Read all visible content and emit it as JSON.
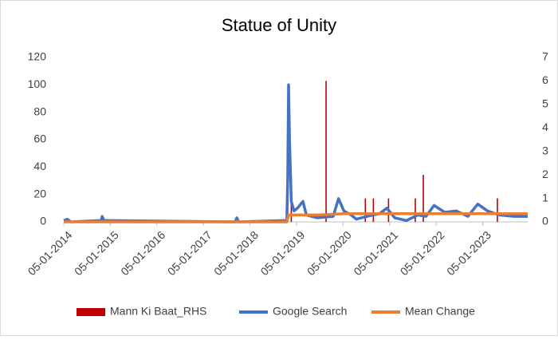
{
  "chart_data": {
    "type": "combo",
    "title": "Statue of Unity",
    "xlim": [
      "2014-01-05",
      "2023-12-24"
    ],
    "xticks": [
      {
        "value": "2014-01-05",
        "label": "05-01-2014"
      },
      {
        "value": "2015-01-05",
        "label": "05-01-2015"
      },
      {
        "value": "2016-01-05",
        "label": "05-01-2016"
      },
      {
        "value": "2017-01-05",
        "label": "05-01-2017"
      },
      {
        "value": "2018-01-05",
        "label": "05-01-2018"
      },
      {
        "value": "2019-01-05",
        "label": "05-01-2019"
      },
      {
        "value": "2020-01-05",
        "label": "05-01-2020"
      },
      {
        "value": "2021-01-05",
        "label": "05-01-2021"
      },
      {
        "value": "2022-01-05",
        "label": "05-01-2022"
      },
      {
        "value": "2023-01-05",
        "label": "05-01-2023"
      }
    ],
    "ylim": [
      0,
      120
    ],
    "yticks": [
      0,
      20,
      40,
      60,
      80,
      100,
      120
    ],
    "y2lim": [
      0,
      7
    ],
    "y2ticks": [
      0,
      1,
      2,
      3,
      4,
      5,
      6,
      7
    ],
    "legend": "bottom",
    "series": [
      {
        "name": "Mann Ki Baat_RHS",
        "type": "bar",
        "axis": "y2",
        "color": "#c00000",
        "x": [
          "2018-10-28",
          "2018-11-25",
          "2019-08-25",
          "2020-06-28",
          "2020-08-30",
          "2020-12-27",
          "2021-07-25",
          "2021-09-26",
          "2023-04-30"
        ],
        "values": [
          2,
          2,
          6,
          1,
          1,
          1,
          1,
          2,
          1
        ]
      },
      {
        "name": "Google Search",
        "type": "line",
        "color": "#4472c4",
        "x": [
          "2014-01-05",
          "2014-02-02",
          "2014-03-02",
          "2014-10-26",
          "2014-11-02",
          "2014-11-16",
          "2017-09-10",
          "2017-09-24",
          "2017-10-08",
          "2018-10-21",
          "2018-10-28",
          "2018-11-04",
          "2018-11-11",
          "2018-11-25",
          "2018-12-16",
          "2019-01-13",
          "2019-02-24",
          "2019-03-24",
          "2019-06-16",
          "2019-10-20",
          "2019-12-01",
          "2020-01-12",
          "2020-03-08",
          "2020-04-19",
          "2020-07-12",
          "2020-10-18",
          "2020-12-13",
          "2021-02-14",
          "2021-05-16",
          "2021-08-15",
          "2021-10-17",
          "2021-12-19",
          "2022-03-13",
          "2022-06-12",
          "2022-09-11",
          "2022-11-27",
          "2023-02-12",
          "2023-05-14",
          "2023-09-10",
          "2023-12-24"
        ],
        "values": [
          1,
          2,
          0,
          1,
          4,
          1,
          0,
          3,
          0,
          1,
          30,
          100,
          60,
          15,
          8,
          10,
          15,
          5,
          3,
          4,
          17,
          8,
          5,
          2,
          4,
          6,
          10,
          3,
          1,
          5,
          4,
          12,
          7,
          8,
          4,
          13,
          8,
          5,
          4,
          4
        ]
      },
      {
        "name": "Mean Change",
        "type": "line",
        "color": "#ed7d31",
        "x": [
          "2014-01-05",
          "2018-10-21",
          "2018-11-04",
          "2019-06-16",
          "2020-01-12",
          "2023-12-24"
        ],
        "values": [
          0,
          0,
          5,
          5,
          6,
          6
        ]
      }
    ]
  }
}
